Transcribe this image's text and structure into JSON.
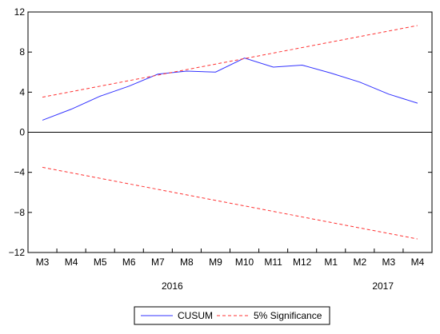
{
  "chart_data": {
    "type": "line",
    "categories": [
      "M3",
      "M4",
      "M5",
      "M6",
      "M7",
      "M8",
      "M9",
      "M10",
      "M11",
      "M12",
      "M1",
      "M2",
      "M3",
      "M4"
    ],
    "year_labels": [
      {
        "label": "2016",
        "category_index": 4.5
      },
      {
        "label": "2017",
        "category_index": 11.8
      }
    ],
    "series": [
      {
        "name": "CUSUM",
        "color": "#3333ff",
        "dash": "solid",
        "values": [
          1.2,
          2.3,
          3.6,
          4.6,
          5.8,
          6.1,
          6.0,
          7.4,
          6.5,
          6.7,
          5.9,
          5.0,
          3.8,
          2.9
        ]
      },
      {
        "name": "5% Significance",
        "color": "#ff3333",
        "dash": "dashed",
        "values": [
          3.5,
          4.05,
          4.6,
          5.15,
          5.7,
          6.25,
          6.8,
          7.35,
          7.9,
          8.45,
          9.0,
          9.55,
          10.1,
          10.65
        ]
      },
      {
        "name": "",
        "color": "#ff3333",
        "dash": "dashed",
        "values": [
          -3.5,
          -4.05,
          -4.6,
          -5.15,
          -5.7,
          -6.25,
          -6.8,
          -7.35,
          -7.9,
          -8.45,
          -9.0,
          -9.55,
          -10.1,
          -10.65
        ]
      }
    ],
    "yticks": [
      12,
      8,
      4,
      0,
      -4,
      -8,
      -12
    ],
    "ytick_labels": [
      "12",
      "8",
      "4",
      "0",
      "−4",
      "−8",
      "−12"
    ],
    "ylim": [
      -12,
      12
    ],
    "zero_line": true,
    "grid": false,
    "legend_position": "bottom",
    "title": "",
    "xlabel": "",
    "ylabel": ""
  }
}
